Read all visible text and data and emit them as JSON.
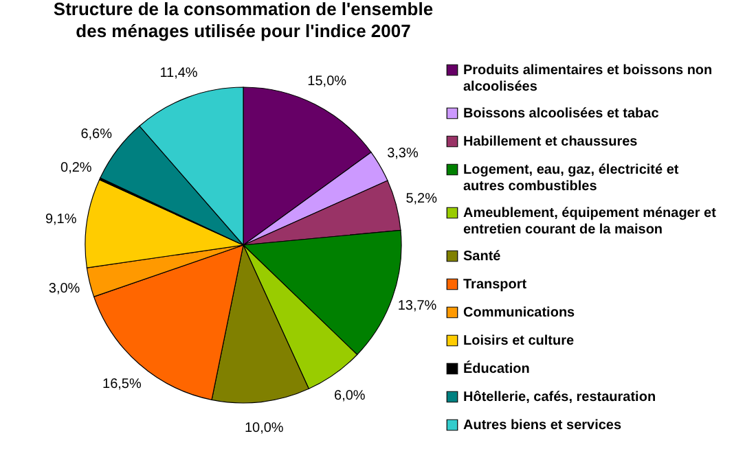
{
  "chart_data": {
    "type": "pie",
    "title": "Structure de la consommation de l'ensemble des ménages utilisée pour l'indice 2007",
    "categories": [
      "Produits alimentaires et boissons non alcoolisées",
      "Boissons alcoolisées et tabac",
      "Habillement et chaussures",
      "Logement, eau, gaz, électricité et autres combustibles",
      "Ameublement, équipement ménager et entretien courant de la maison",
      "Santé",
      "Transport",
      "Communications",
      "Loisirs et culture",
      "Éducation",
      "Hôtellerie, cafés, restauration",
      "Autres biens et services"
    ],
    "values": [
      15.0,
      3.3,
      5.2,
      13.7,
      6.0,
      10.0,
      16.5,
      3.0,
      9.1,
      0.2,
      6.6,
      11.4
    ],
    "value_labels": [
      "15,0%",
      "3,3%",
      "5,2%",
      "13,7%",
      "6,0%",
      "10,0%",
      "16,5%",
      "3,0%",
      "9,1%",
      "0,2%",
      "6,6%",
      "11,4%"
    ],
    "colors": [
      "#660066",
      "#cc99ff",
      "#993366",
      "#008000",
      "#99cc00",
      "#808000",
      "#ff6600",
      "#ff9900",
      "#ffcc00",
      "#000000",
      "#008080",
      "#33cccc"
    ],
    "legend": "right"
  }
}
